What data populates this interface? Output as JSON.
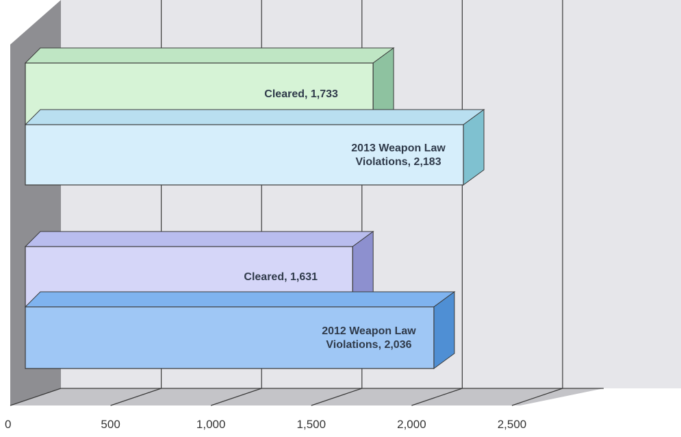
{
  "chart_data": {
    "type": "bar",
    "orientation": "horizontal",
    "style": "3d",
    "xlim": [
      0,
      2500
    ],
    "ticks": [
      {
        "value": 0,
        "label": "0"
      },
      {
        "value": 500,
        "label": "500"
      },
      {
        "value": 1000,
        "label": "1,000"
      },
      {
        "value": 1500,
        "label": "1,500"
      },
      {
        "value": 2000,
        "label": "2,000"
      },
      {
        "value": 2500,
        "label": "2,500"
      }
    ],
    "grid": true,
    "title": "",
    "xlabel": "",
    "ylabel": "",
    "bars": [
      {
        "label": "Cleared, 1,733",
        "lines": [
          "Cleared, 1,733"
        ],
        "value": 1733,
        "colors": {
          "front": "#d6f3d6",
          "top": "#bfe6c4",
          "side": "#8ec2a0"
        }
      },
      {
        "label": "2013 Weapon Law Violations, 2,183",
        "lines": [
          "2013 Weapon Law",
          "Violations, 2,183"
        ],
        "value": 2183,
        "colors": {
          "front": "#d6eefb",
          "top": "#b9dff0",
          "side": "#7fc1d0"
        }
      },
      {
        "label": "Cleared, 1,631",
        "lines": [
          "Cleared, 1,631"
        ],
        "value": 1631,
        "colors": {
          "front": "#d5d6f8",
          "top": "#b9bdee",
          "side": "#8d90cf"
        }
      },
      {
        "label": "2012 Weapon Law Violations, 2,036",
        "lines": [
          "2012 Weapon Law",
          "Violations, 2,036"
        ],
        "value": 2036,
        "colors": {
          "front": "#9fc7f5",
          "top": "#7fb3ef",
          "side": "#4f8fd4"
        }
      }
    ]
  },
  "colors": {
    "back_wall": "#e6e6ea",
    "left_wall": "#8e8e92",
    "floor": "#c4c4c8",
    "grid": "#3a3a3a",
    "outline": "#3a3a3a"
  }
}
